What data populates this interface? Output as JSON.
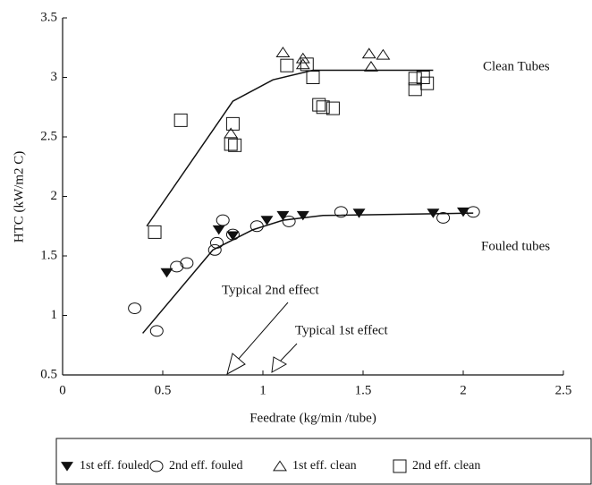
{
  "chart_data": {
    "type": "scatter",
    "xlabel": "Feedrate  (kg/min /tube)",
    "ylabel": "HTC (kW/m2 C)",
    "xlim": [
      0,
      2.5
    ],
    "xticks": [
      0,
      0.5,
      1,
      1.5,
      2,
      2.5
    ],
    "ylim": [
      0.5,
      3.5
    ],
    "yticks": [
      0.5,
      1,
      1.5,
      2,
      2.5,
      3,
      3.5
    ],
    "series": [
      {
        "name": "1st eff. fouled",
        "color": "#111111",
        "marker": "triangle-down-filled",
        "x": [
          0.52,
          0.78,
          0.85,
          1.02,
          1.1,
          1.2,
          1.48,
          1.85,
          2.0
        ],
        "values": [
          1.36,
          1.72,
          1.67,
          1.8,
          1.84,
          1.84,
          1.86,
          1.86,
          1.87
        ]
      },
      {
        "name": "2nd eff. fouled",
        "color": "#111111",
        "marker": "circle-open",
        "x": [
          0.36,
          0.47,
          0.57,
          0.62,
          0.76,
          0.77,
          0.8,
          0.85,
          0.97,
          1.13,
          1.39,
          1.9,
          2.05
        ],
        "values": [
          1.06,
          0.87,
          1.41,
          1.44,
          1.55,
          1.61,
          1.8,
          1.68,
          1.75,
          1.79,
          1.87,
          1.82,
          1.87
        ]
      },
      {
        "name": "1st eff. clean",
        "color": "#111111",
        "marker": "triangle-up-open",
        "x": [
          1.1,
          1.2,
          1.53,
          1.6,
          0.84,
          1.2,
          1.54
        ],
        "values": [
          3.21,
          3.16,
          3.2,
          3.19,
          2.53,
          3.11,
          3.09
        ]
      },
      {
        "name": "2nd eff. clean",
        "color": "#111111",
        "marker": "square-open",
        "x": [
          0.46,
          0.59,
          0.85,
          0.84,
          0.86,
          1.12,
          1.22,
          1.25,
          1.28,
          1.3,
          1.35,
          1.76,
          1.76,
          1.8,
          1.82
        ],
        "values": [
          1.7,
          2.64,
          2.61,
          2.44,
          2.43,
          3.1,
          3.11,
          3.0,
          2.77,
          2.75,
          2.74,
          2.99,
          2.9,
          3.0,
          2.95
        ]
      }
    ],
    "curves": [
      {
        "x": [
          0.42,
          0.85,
          1.05,
          1.25,
          1.85
        ],
        "values": [
          1.75,
          2.8,
          2.98,
          3.06,
          3.06
        ]
      },
      {
        "x": [
          0.4,
          0.75,
          0.95,
          1.1,
          1.3,
          2.05
        ],
        "values": [
          0.85,
          1.55,
          1.72,
          1.8,
          1.84,
          1.86
        ]
      }
    ],
    "annotations": [
      "Clean Tubes",
      "Fouled tubes",
      "Typical 2nd effect",
      "Typical 1st effect"
    ]
  }
}
